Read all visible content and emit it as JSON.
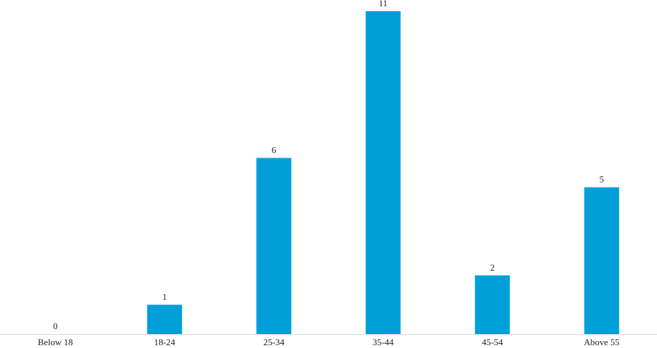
{
  "chart_data": {
    "type": "bar",
    "categories": [
      "Below 18",
      "18-24",
      "25-34",
      "35-44",
      "45-54",
      "Above 55"
    ],
    "values": [
      0,
      1,
      6,
      11,
      2,
      5
    ],
    "color": "#009fd9"
  }
}
